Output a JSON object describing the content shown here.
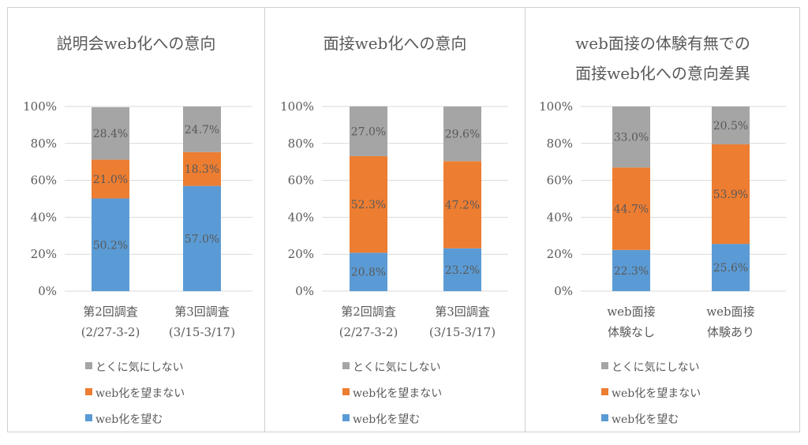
{
  "colors": {
    "gray": "#a5a5a5",
    "orange": "#ed7d31",
    "blue": "#5b9bd5",
    "axis_text": "#595959",
    "grid": "#d9d9d9"
  },
  "chart_data": [
    {
      "type": "bar",
      "stacked": true,
      "title_lines": [
        "説明会web化への意向"
      ],
      "categories": [
        [
          "第2回調査",
          "(2/27-3-2)"
        ],
        [
          "第3回調査",
          "(3/15-3/17)"
        ]
      ],
      "series": [
        {
          "name": "web化を望む",
          "color": "#5b9bd5",
          "values": [
            50.2,
            57.0
          ],
          "labels": [
            "50.2%",
            "57.0%"
          ]
        },
        {
          "name": "web化を望まない",
          "color": "#ed7d31",
          "values": [
            21.0,
            18.3
          ],
          "labels": [
            "21.0%",
            "18.3%"
          ]
        },
        {
          "name": "とくに気にしない",
          "color": "#a5a5a5",
          "values": [
            28.4,
            24.7
          ],
          "labels": [
            "28.4%",
            "24.7%"
          ]
        }
      ],
      "y_ticks": [
        "0%",
        "20%",
        "40%",
        "60%",
        "80%",
        "100%"
      ],
      "ylim": [
        0,
        100
      ],
      "grid": true,
      "legend": "bottom",
      "legend_items": [
        "とくに気にしない",
        "web化を望まない",
        "web化を望む"
      ]
    },
    {
      "type": "bar",
      "stacked": true,
      "title_lines": [
        "面接web化への意向"
      ],
      "categories": [
        [
          "第2回調査",
          "(2/27-3-2)"
        ],
        [
          "第3回調査",
          "(3/15-3/17)"
        ]
      ],
      "series": [
        {
          "name": "web化を望む",
          "color": "#5b9bd5",
          "values": [
            20.8,
            23.2
          ],
          "labels": [
            "20.8%",
            "23.2%"
          ]
        },
        {
          "name": "web化を望まない",
          "color": "#ed7d31",
          "values": [
            52.3,
            47.2
          ],
          "labels": [
            "52.3%",
            "47.2%"
          ]
        },
        {
          "name": "とくに気にしない",
          "color": "#a5a5a5",
          "values": [
            27.0,
            29.6
          ],
          "labels": [
            "27.0%",
            "29.6%"
          ]
        }
      ],
      "y_ticks": [
        "0%",
        "20%",
        "40%",
        "60%",
        "80%",
        "100%"
      ],
      "ylim": [
        0,
        100
      ],
      "grid": true,
      "legend": "bottom",
      "legend_items": [
        "とくに気にしない",
        "web化を望まない",
        "web化を望む"
      ]
    },
    {
      "type": "bar",
      "stacked": true,
      "title_lines": [
        "web面接の体験有無での",
        "面接web化への意向差異"
      ],
      "categories": [
        [
          "web面接",
          "体験なし"
        ],
        [
          "web面接",
          "体験あり"
        ]
      ],
      "series": [
        {
          "name": "web化を望む",
          "color": "#5b9bd5",
          "values": [
            22.3,
            25.6
          ],
          "labels": [
            "22.3%",
            "25.6%"
          ]
        },
        {
          "name": "web化を望まない",
          "color": "#ed7d31",
          "values": [
            44.7,
            53.9
          ],
          "labels": [
            "44.7%",
            "53.9%"
          ]
        },
        {
          "name": "とくに気にしない",
          "color": "#a5a5a5",
          "values": [
            33.0,
            20.5
          ],
          "labels": [
            "33.0%",
            "20.5%"
          ]
        }
      ],
      "y_ticks": [
        "0%",
        "20%",
        "40%",
        "60%",
        "80%",
        "100%"
      ],
      "ylim": [
        0,
        100
      ],
      "grid": true,
      "legend": "bottom",
      "legend_items": [
        "とくに気にしない",
        "web化を望まない",
        "web化を望む"
      ]
    }
  ]
}
